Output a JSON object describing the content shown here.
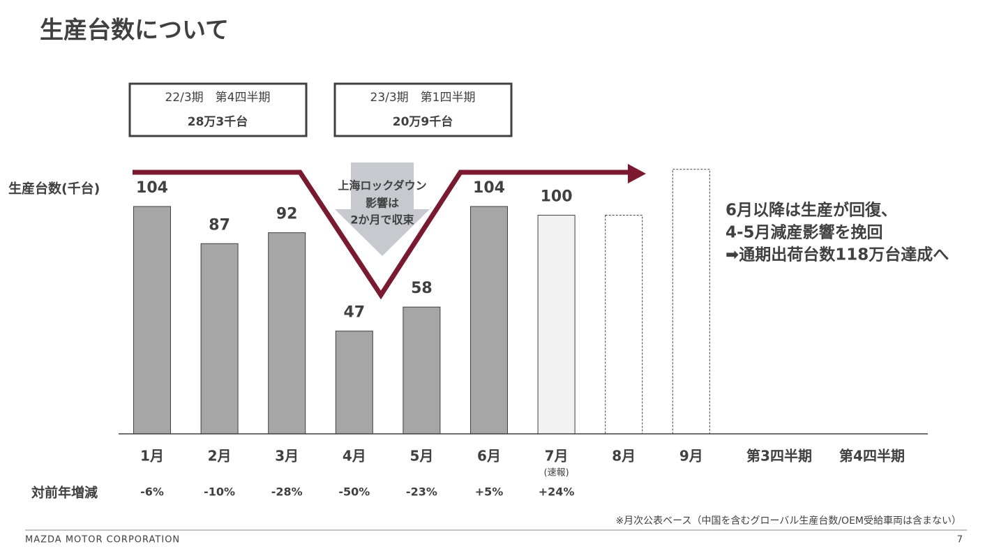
{
  "title": "生産台数について",
  "chart_data": {
    "type": "bar",
    "y_axis_label": "生産台数(千台)",
    "categories": [
      "1月",
      "2月",
      "3月",
      "4月",
      "5月",
      "6月",
      "7月",
      "8月",
      "9月",
      "第3四半期",
      "第4四半期"
    ],
    "category_notes": [
      null,
      null,
      null,
      null,
      null,
      null,
      "(速報)",
      null,
      null,
      null,
      null
    ],
    "values": [
      104,
      87,
      92,
      47,
      58,
      104,
      100,
      100,
      121,
      null,
      null
    ],
    "value_labels": [
      "104",
      "87",
      "92",
      "47",
      "58",
      "104",
      "100",
      null,
      null,
      null,
      null
    ],
    "bar_styles": [
      "solid",
      "solid",
      "solid",
      "solid",
      "solid",
      "solid",
      "light",
      "dashed",
      "dashed",
      null,
      null
    ],
    "ylim": [
      0,
      130
    ],
    "row_label": "対前年増減",
    "yoy": [
      "-6%",
      "-10%",
      "-28%",
      "-50%",
      "-23%",
      "+5%",
      "+24%",
      null,
      null,
      null,
      null
    ]
  },
  "boxes": [
    {
      "period": "22/3期　第4四半期",
      "amount": "28万3千台"
    },
    {
      "period": "23/3期　第1四半期",
      "amount": "20万9千台"
    }
  ],
  "annotation": [
    "上海ロックダウン",
    "影響は",
    "2か月で収束"
  ],
  "message": [
    "6月以降は生産が回復、",
    "4-5月減産影響を挽回",
    "➡通期出荷台数118万台達成へ"
  ],
  "footnote": "※月次公表ベース（中国を含むグローバル生産台数/OEM受給車両は含まない）",
  "footer": "MAZDA MOTOR CORPORATION",
  "page_number": "7"
}
